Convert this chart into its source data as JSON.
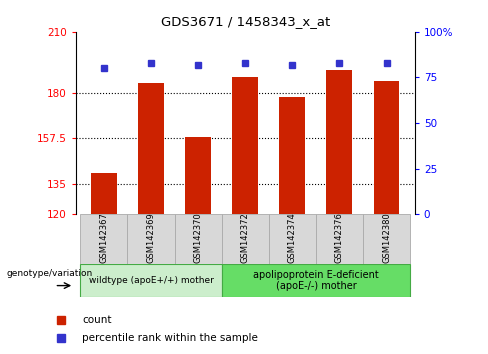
{
  "title": "GDS3671 / 1458343_x_at",
  "samples": [
    "GSM142367",
    "GSM142369",
    "GSM142370",
    "GSM142372",
    "GSM142374",
    "GSM142376",
    "GSM142380"
  ],
  "count_values": [
    140.5,
    185.0,
    158.0,
    187.5,
    178.0,
    191.0,
    185.5
  ],
  "percentile_values": [
    80,
    83,
    82,
    83,
    82,
    83,
    83
  ],
  "ymin": 120,
  "ymax": 210,
  "yticks": [
    120,
    135,
    157.5,
    180,
    210
  ],
  "ytick_labels": [
    "120",
    "135",
    "157.5",
    "180",
    "210"
  ],
  "right_yticks": [
    0,
    25,
    50,
    75,
    100
  ],
  "right_ytick_labels": [
    "0",
    "25",
    "50",
    "75",
    "100%"
  ],
  "bar_color": "#cc2200",
  "dot_color": "#3333cc",
  "bar_width": 0.55,
  "grid_lines": [
    135,
    157.5,
    180
  ],
  "group1_label": "wildtype (apoE+/+) mother",
  "group2_label": "apolipoprotein E-deficient\n(apoE-/-) mother",
  "genotype_label": "genotype/variation",
  "legend_count": "count",
  "legend_percentile": "percentile rank within the sample",
  "group1_color": "#cceecc",
  "group2_color": "#66dd66",
  "sample_box_color": "#d8d8d8",
  "sample_box_edge": "#aaaaaa"
}
